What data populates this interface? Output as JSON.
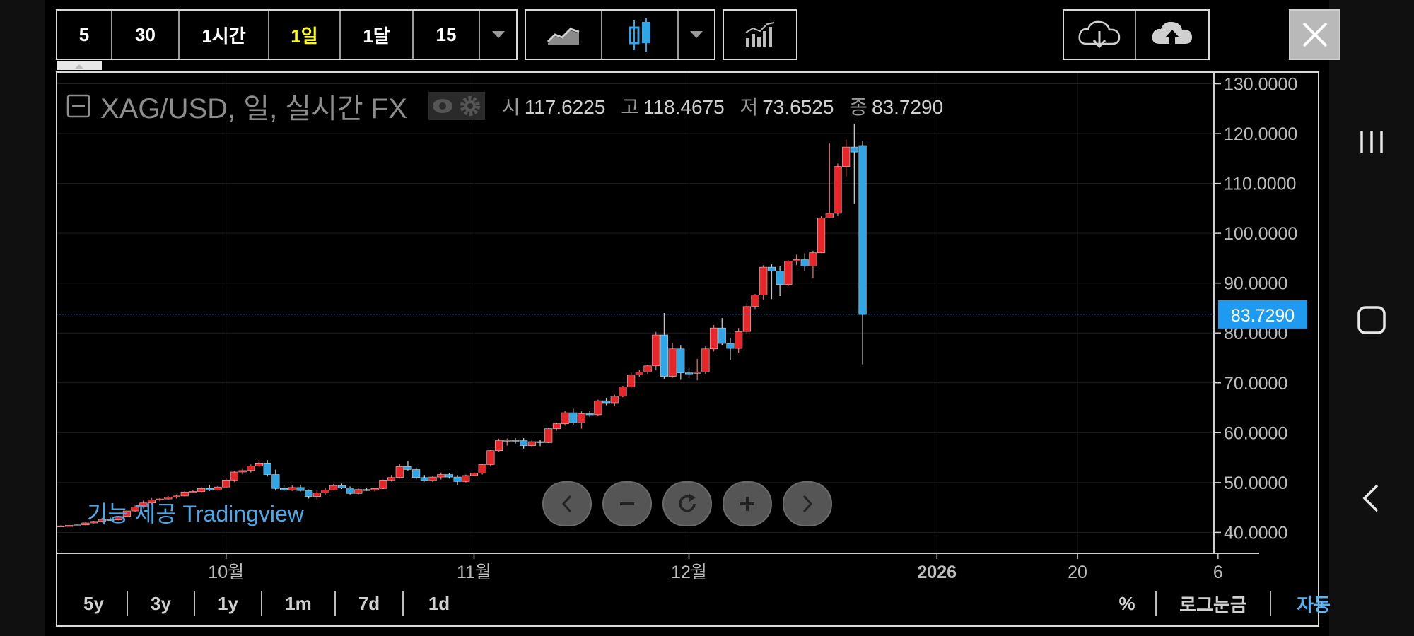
{
  "toolbar": {
    "intervals": [
      "5",
      "30",
      "1시간",
      "1일",
      "1달",
      "15"
    ],
    "active_interval": "1일"
  },
  "legend": {
    "title": "XAG/USD, 일, 실시간 FX",
    "open_label": "시",
    "open": "117.6225",
    "high_label": "고",
    "high": "118.4675",
    "low_label": "저",
    "low": "73.6525",
    "close_label": "종",
    "close": "83.7290"
  },
  "watermark": "기능 제공 Tradingview",
  "bottom": {
    "ranges": [
      "5y",
      "3y",
      "1y",
      "1m",
      "7d",
      "1d"
    ],
    "percent": "%",
    "log": "로그눈금",
    "auto": "자동"
  },
  "colors": {
    "up": "#e8262a",
    "down": "#2fa6e8",
    "price_tag": "#1e9bf0",
    "active": "#ffff00",
    "auto": "#5ab4f0"
  },
  "chart_data": {
    "type": "candlestick",
    "symbol": "XAG/USD",
    "price_tag": "83.7290",
    "y_ticks": [
      "130.0000",
      "120.0000",
      "110.0000",
      "100.0000",
      "90.0000",
      "80.0000",
      "70.0000",
      "60.0000",
      "50.0000",
      "40.0000"
    ],
    "ylim": [
      35.8,
      132.2
    ],
    "x_ticks": [
      {
        "label": "10월",
        "index": 20,
        "bold": false
      },
      {
        "label": "11월",
        "index": 50,
        "bold": false
      },
      {
        "label": "12월",
        "index": 76,
        "bold": false
      },
      {
        "label": "2026",
        "index": 106,
        "bold": true
      },
      {
        "label": "20",
        "index": 123,
        "bold": false
      },
      {
        "label": "6",
        "index": 140,
        "bold": false
      }
    ],
    "n_slots": 140,
    "candles": [
      [
        0,
        41.3,
        41.4,
        41.2,
        41.3
      ],
      [
        1,
        41.3,
        41.5,
        41.2,
        41.4
      ],
      [
        2,
        41.4,
        41.6,
        41.3,
        41.5
      ],
      [
        3,
        41.5,
        42.0,
        41.4,
        41.9
      ],
      [
        4,
        41.9,
        42.3,
        41.8,
        42.2
      ],
      [
        5,
        42.2,
        42.9,
        42.0,
        42.6
      ],
      [
        6,
        42.6,
        43.0,
        42.3,
        42.5
      ],
      [
        7,
        42.5,
        43.3,
        42.4,
        43.2
      ],
      [
        8,
        43.2,
        44.6,
        43.0,
        44.3
      ],
      [
        9,
        44.3,
        45.4,
        44.1,
        45.1
      ],
      [
        10,
        45.1,
        46.4,
        44.8,
        45.9
      ],
      [
        11,
        45.9,
        46.9,
        45.6,
        46.5
      ],
      [
        12,
        46.5,
        46.9,
        46.2,
        46.7
      ],
      [
        13,
        46.7,
        47.3,
        46.6,
        47.1
      ],
      [
        14,
        47.1,
        47.6,
        46.8,
        47.3
      ],
      [
        15,
        47.3,
        48.3,
        47.2,
        48.1
      ],
      [
        16,
        48.1,
        48.4,
        47.9,
        48.2
      ],
      [
        17,
        48.2,
        49.2,
        47.9,
        48.8
      ],
      [
        18,
        48.8,
        49.5,
        48.3,
        48.5
      ],
      [
        19,
        48.5,
        49.3,
        48.4,
        49.1
      ],
      [
        20,
        49.1,
        50.9,
        48.9,
        50.5
      ],
      [
        21,
        50.5,
        52.3,
        50.1,
        52.1
      ],
      [
        22,
        52.1,
        52.9,
        51.6,
        52.4
      ],
      [
        23,
        52.4,
        53.6,
        52.0,
        53.3
      ],
      [
        24,
        53.3,
        54.5,
        53.0,
        53.9
      ],
      [
        25,
        53.9,
        54.5,
        51.2,
        51.6
      ],
      [
        26,
        51.6,
        52.6,
        48.4,
        48.8
      ],
      [
        27,
        48.8,
        49.5,
        48.3,
        48.5
      ],
      [
        28,
        48.5,
        49.4,
        48.3,
        49.0
      ],
      [
        29,
        49.0,
        49.5,
        48.2,
        48.4
      ],
      [
        30,
        48.4,
        48.6,
        46.8,
        47.2
      ],
      [
        31,
        47.2,
        48.4,
        46.6,
        47.9
      ],
      [
        32,
        47.9,
        49.0,
        47.6,
        48.5
      ],
      [
        33,
        48.5,
        49.7,
        48.4,
        49.4
      ],
      [
        34,
        49.4,
        49.8,
        48.7,
        48.9
      ],
      [
        35,
        48.9,
        49.2,
        47.6,
        47.8
      ],
      [
        36,
        47.8,
        48.9,
        47.6,
        48.6
      ],
      [
        37,
        48.6,
        48.9,
        48.3,
        48.5
      ],
      [
        38,
        48.5,
        49.0,
        48.2,
        48.8
      ],
      [
        39,
        48.8,
        50.6,
        48.7,
        50.5
      ],
      [
        40,
        50.5,
        51.5,
        50.2,
        51.0
      ],
      [
        41,
        51.0,
        53.7,
        50.8,
        53.2
      ],
      [
        42,
        53.2,
        54.3,
        52.4,
        52.6
      ],
      [
        43,
        52.6,
        53.0,
        50.6,
        51.0
      ],
      [
        44,
        51.0,
        51.5,
        50.2,
        50.4
      ],
      [
        45,
        50.4,
        51.4,
        50.1,
        51.1
      ],
      [
        46,
        51.1,
        52.0,
        50.6,
        51.6
      ],
      [
        47,
        51.6,
        51.9,
        50.8,
        51.1
      ],
      [
        48,
        51.1,
        51.5,
        49.5,
        50.2
      ],
      [
        49,
        50.2,
        51.6,
        50.0,
        51.4
      ],
      [
        50,
        51.4,
        52.0,
        51.2,
        51.9
      ],
      [
        51,
        51.9,
        53.8,
        51.6,
        53.6
      ],
      [
        52,
        53.6,
        56.5,
        53.2,
        56.4
      ],
      [
        53,
        56.4,
        58.8,
        56.2,
        58.4
      ],
      [
        54,
        58.4,
        58.8,
        57.4,
        58.5
      ],
      [
        55,
        58.5,
        58.9,
        57.8,
        58.4
      ],
      [
        56,
        58.4,
        58.9,
        56.8,
        57.4
      ],
      [
        57,
        57.4,
        58.6,
        57.0,
        58.2
      ],
      [
        58,
        58.2,
        58.5,
        57.3,
        58.0
      ],
      [
        59,
        58.0,
        61.0,
        57.9,
        60.8
      ],
      [
        60,
        60.8,
        62.0,
        60.4,
        61.8
      ],
      [
        61,
        61.8,
        64.4,
        61.4,
        64.0
      ],
      [
        62,
        64.0,
        64.8,
        61.6,
        62.0
      ],
      [
        63,
        62.0,
        64.3,
        60.8,
        63.8
      ],
      [
        64,
        63.8,
        64.3,
        63.2,
        63.6
      ],
      [
        65,
        63.6,
        66.6,
        63.3,
        66.4
      ],
      [
        66,
        66.4,
        67.0,
        65.5,
        66.0
      ],
      [
        67,
        66.0,
        67.6,
        65.3,
        67.3
      ],
      [
        68,
        67.3,
        69.4,
        67.1,
        69.2
      ],
      [
        69,
        69.2,
        72.0,
        69.0,
        71.6
      ],
      [
        70,
        71.6,
        72.6,
        71.2,
        72.2
      ],
      [
        71,
        72.2,
        73.6,
        71.8,
        73.4
      ],
      [
        72,
        73.4,
        80.2,
        72.5,
        79.6
      ],
      [
        73,
        79.6,
        84.0,
        70.8,
        71.3
      ],
      [
        74,
        71.3,
        78.0,
        71.0,
        76.8
      ],
      [
        75,
        76.8,
        77.6,
        70.6,
        72.0
      ],
      [
        76,
        72.0,
        73.0,
        70.9,
        71.9
      ],
      [
        77,
        71.9,
        74.8,
        70.5,
        72.2
      ],
      [
        78,
        72.2,
        77.4,
        71.8,
        76.8
      ],
      [
        79,
        76.8,
        81.6,
        76.3,
        81.0
      ],
      [
        80,
        81.0,
        83.0,
        77.6,
        77.9
      ],
      [
        81,
        77.9,
        79.0,
        74.6,
        76.9
      ],
      [
        82,
        76.9,
        81.0,
        76.0,
        80.3
      ],
      [
        83,
        80.3,
        85.9,
        79.8,
        85.3
      ],
      [
        84,
        85.3,
        87.8,
        84.8,
        87.6
      ],
      [
        85,
        87.6,
        93.6,
        86.7,
        93.2
      ],
      [
        86,
        93.2,
        93.8,
        86.8,
        92.4
      ],
      [
        87,
        92.4,
        93.4,
        87.4,
        89.7
      ],
      [
        88,
        89.7,
        94.6,
        89.4,
        94.4
      ],
      [
        89,
        94.4,
        95.7,
        93.6,
        94.7
      ],
      [
        90,
        94.7,
        96.0,
        92.4,
        93.4
      ],
      [
        91,
        93.4,
        96.5,
        91.0,
        96.1
      ],
      [
        92,
        96.1,
        103.5,
        96.0,
        103.1
      ],
      [
        93,
        103.1,
        118.0,
        103.0,
        104.0
      ],
      [
        94,
        104.0,
        114.0,
        103.5,
        113.4
      ],
      [
        95,
        113.4,
        118.8,
        111.4,
        117.3
      ],
      [
        96,
        117.3,
        122.0,
        106.0,
        116.3
      ],
      [
        97,
        117.6,
        118.5,
        73.7,
        83.7
      ]
    ]
  }
}
